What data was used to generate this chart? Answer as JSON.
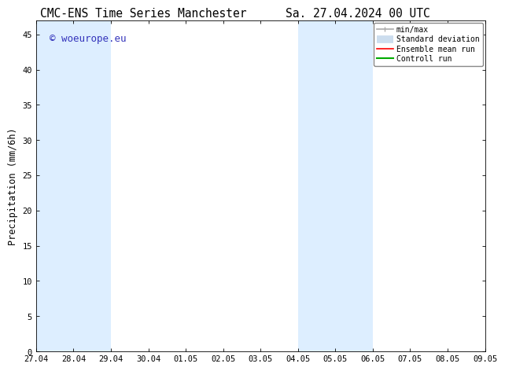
{
  "title_left": "CMC-ENS Time Series Manchester",
  "title_right": "Sa. 27.04.2024 00 UTC",
  "ylabel": "Precipitation (mm/6h)",
  "xlabel_ticks": [
    "27.04",
    "28.04",
    "29.04",
    "30.04",
    "01.05",
    "02.05",
    "03.05",
    "04.05",
    "05.05",
    "06.05",
    "07.05",
    "08.05",
    "09.05"
  ],
  "xlim_start": 0,
  "xlim_end": 12,
  "ylim": [
    0,
    47
  ],
  "yticks": [
    0,
    5,
    10,
    15,
    20,
    25,
    30,
    35,
    40,
    45
  ],
  "background_color": "#ffffff",
  "plot_bg_color": "#ffffff",
  "shaded_regions": [
    {
      "x_start": 0,
      "x_end": 2,
      "color": "#ddeeff"
    },
    {
      "x_start": 7,
      "x_end": 9,
      "color": "#ddeeff"
    }
  ],
  "watermark_text": "© woeurope.eu",
  "watermark_color": "#3333bb",
  "legend_items": [
    {
      "label": "min/max",
      "color": "#aaaaaa",
      "lw": 1.2
    },
    {
      "label": "Standard deviation",
      "color": "#ccddee",
      "lw": 7
    },
    {
      "label": "Ensemble mean run",
      "color": "#ff0000",
      "lw": 1.2
    },
    {
      "label": "Controll run",
      "color": "#00aa00",
      "lw": 1.5
    }
  ],
  "title_fontsize": 10.5,
  "tick_fontsize": 7.5,
  "ylabel_fontsize": 8.5,
  "watermark_fontsize": 9
}
